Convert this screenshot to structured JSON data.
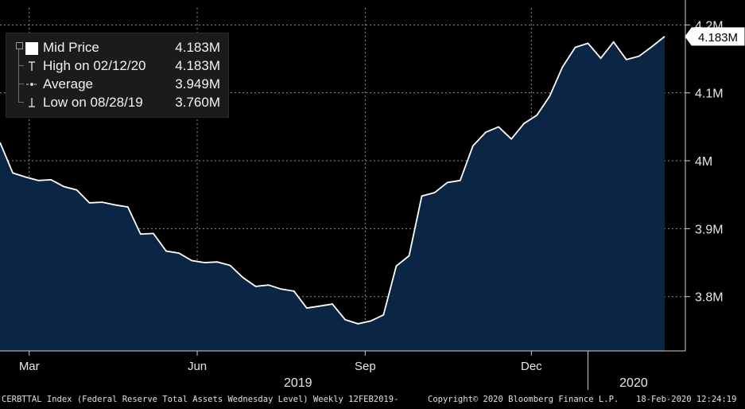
{
  "chart_data": {
    "type": "area",
    "x": [
      "2019-02-13",
      "2019-02-20",
      "2019-02-27",
      "2019-03-06",
      "2019-03-13",
      "2019-03-20",
      "2019-03-27",
      "2019-04-03",
      "2019-04-10",
      "2019-04-17",
      "2019-04-24",
      "2019-05-01",
      "2019-05-08",
      "2019-05-15",
      "2019-05-22",
      "2019-05-29",
      "2019-06-05",
      "2019-06-12",
      "2019-06-19",
      "2019-06-26",
      "2019-07-03",
      "2019-07-10",
      "2019-07-17",
      "2019-07-24",
      "2019-07-31",
      "2019-08-07",
      "2019-08-14",
      "2019-08-21",
      "2019-08-28",
      "2019-09-04",
      "2019-09-11",
      "2019-09-18",
      "2019-09-25",
      "2019-10-02",
      "2019-10-09",
      "2019-10-16",
      "2019-10-23",
      "2019-10-30",
      "2019-11-06",
      "2019-11-13",
      "2019-11-20",
      "2019-11-27",
      "2019-12-04",
      "2019-12-11",
      "2019-12-18",
      "2019-12-25",
      "2020-01-01",
      "2020-01-08",
      "2020-01-15",
      "2020-01-22",
      "2020-01-29",
      "2020-02-05",
      "2020-02-12"
    ],
    "series": [
      {
        "name": "Mid Price",
        "values": [
          4.027,
          3.982,
          3.976,
          3.971,
          3.972,
          3.962,
          3.957,
          3.938,
          3.939,
          3.935,
          3.932,
          3.892,
          3.893,
          3.867,
          3.864,
          3.853,
          3.85,
          3.851,
          3.846,
          3.828,
          3.815,
          3.817,
          3.811,
          3.808,
          3.783,
          3.786,
          3.789,
          3.766,
          3.76,
          3.764,
          3.773,
          3.845,
          3.86,
          3.948,
          3.953,
          3.968,
          3.971,
          4.022,
          4.042,
          4.05,
          4.032,
          4.055,
          4.067,
          4.095,
          4.138,
          4.167,
          4.173,
          4.151,
          4.175,
          4.149,
          4.154,
          4.168,
          4.183
        ]
      }
    ],
    "ylim": [
      3.72,
      4.225
    ],
    "yticks": [
      {
        "value": 3.8,
        "label": "3.8M"
      },
      {
        "value": 3.9,
        "label": "3.9M"
      },
      {
        "value": 4.0,
        "label": "4M"
      },
      {
        "value": 4.1,
        "label": "4.1M"
      },
      {
        "value": 4.2,
        "label": "4.2M"
      }
    ],
    "xticks": [
      {
        "date": "2019-03-01",
        "label": "Mar"
      },
      {
        "date": "2019-06-01",
        "label": "Jun"
      },
      {
        "date": "2019-09-01",
        "label": "Sep"
      },
      {
        "date": "2019-12-01",
        "label": "Dec"
      }
    ],
    "year_labels": [
      {
        "label": "2019",
        "from": "2019-02-01",
        "to": "2020-01-01"
      },
      {
        "label": "2020",
        "from": "2020-01-01",
        "to": "2020-02-20"
      }
    ],
    "year_divider": "2020-01-01",
    "last_value_label": "4.183M",
    "grid": true,
    "legend_position": "top-left",
    "colors": {
      "line": "#ffffff",
      "fill": "#0b2545",
      "grid": "#8a8a8a",
      "background": "#000000"
    },
    "y_axis_position": "right"
  },
  "legend": {
    "items": [
      {
        "label": "Mid Price",
        "value": "4.183M",
        "icon": "white-square-icon"
      },
      {
        "label": "High on 02/12/20",
        "value": "4.183M",
        "icon": "high-marker-icon"
      },
      {
        "label": "Average",
        "value": "3.949M",
        "icon": "average-line-icon"
      },
      {
        "label": "Low on 08/28/19",
        "value": "3.760M",
        "icon": "low-marker-icon"
      }
    ]
  },
  "footer": {
    "source": "CERBTTAL Index (Federal Reserve Total Assets Wednesday Level) Weekly 12FEB2019-",
    "copyright": "Copyright© 2020 Bloomberg Finance L.P.",
    "timestamp": "18-Feb-2020 12:24:19"
  }
}
